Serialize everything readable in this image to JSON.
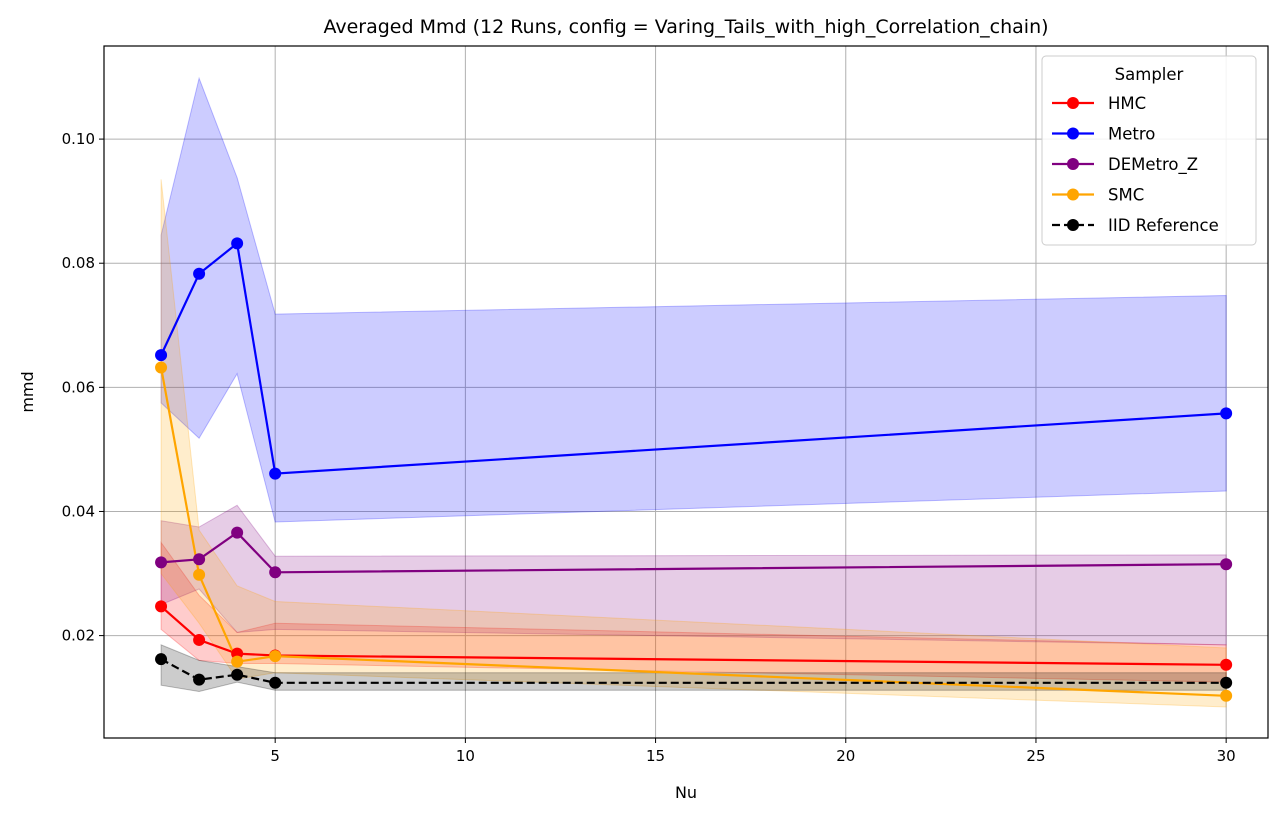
{
  "chart_data": {
    "type": "line",
    "title": "Averaged Mmd (12 Runs, config = Varing_Tails_with_high_Correlation_chain)",
    "xlabel": "Nu",
    "ylabel": "mmd",
    "xlim": [
      0.5,
      31.1
    ],
    "ylim": [
      0.0035,
      0.115
    ],
    "xticks": [
      5,
      10,
      15,
      20,
      25,
      30
    ],
    "xtick_labels": [
      "5",
      "10",
      "15",
      "20",
      "25",
      "30"
    ],
    "yticks": [
      0.02,
      0.04,
      0.06,
      0.08,
      0.1
    ],
    "ytick_labels": [
      "0.02",
      "0.04",
      "0.06",
      "0.08",
      "0.10"
    ],
    "grid": true,
    "legend": {
      "title": "Sampler",
      "position": "top-right"
    },
    "x": [
      2,
      3,
      4,
      5,
      30
    ],
    "series": [
      {
        "name": "HMC",
        "color": "#ff0000",
        "dashed": false,
        "values": [
          0.0247,
          0.0193,
          0.0171,
          0.0168,
          0.0153
        ],
        "band_lower": [
          0.021,
          0.016,
          0.0155,
          0.0155,
          0.0125
        ],
        "band_upper": [
          0.035,
          0.0265,
          0.0205,
          0.022,
          0.0185
        ]
      },
      {
        "name": "Metro",
        "color": "#0000ff",
        "dashed": false,
        "values": [
          0.0652,
          0.0783,
          0.0832,
          0.0461,
          0.0558
        ],
        "band_lower": [
          0.0575,
          0.0518,
          0.0622,
          0.0383,
          0.0433
        ],
        "band_upper": [
          0.0845,
          0.1098,
          0.0938,
          0.0718,
          0.0748
        ]
      },
      {
        "name": "DEMetro_Z",
        "color": "#800080",
        "dashed": false,
        "values": [
          0.0318,
          0.0323,
          0.0366,
          0.0302,
          0.0315
        ],
        "band_lower": [
          0.025,
          0.0275,
          0.0205,
          0.021,
          0.0185
        ],
        "band_upper": [
          0.0385,
          0.0375,
          0.041,
          0.0328,
          0.033
        ]
      },
      {
        "name": "SMC",
        "color": "#ffa500",
        "dashed": false,
        "values": [
          0.0632,
          0.0298,
          0.0158,
          0.0167,
          0.0103
        ],
        "band_lower": [
          0.03,
          0.022,
          0.013,
          0.014,
          0.0085
        ],
        "band_upper": [
          0.0935,
          0.037,
          0.028,
          0.0255,
          0.018
        ]
      },
      {
        "name": "IID Reference",
        "color": "#000000",
        "dashed": true,
        "values": [
          0.0162,
          0.0129,
          0.0137,
          0.0124,
          0.0124
        ],
        "band_lower": [
          0.012,
          0.011,
          0.0125,
          0.0112,
          0.0112
        ],
        "band_upper": [
          0.0185,
          0.016,
          0.015,
          0.014,
          0.014
        ]
      }
    ]
  }
}
